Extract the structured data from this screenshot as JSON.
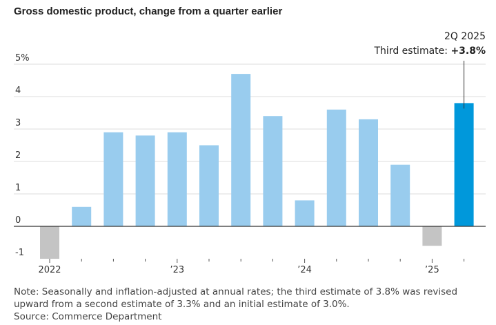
{
  "header": {
    "title": "Gross domestic product, change from a quarter earlier"
  },
  "colors": {
    "past": "#99ccee",
    "negative": "#c4c4c4",
    "latest": "#0098db",
    "grid": "#dddddd",
    "axis": "#333333"
  },
  "chart_data": {
    "type": "bar",
    "title": "Gross domestic product, change from a quarter earlier",
    "xlabel": "",
    "ylabel": "",
    "ylim": [
      -1,
      5
    ],
    "y_ticks": [
      -1,
      0,
      1,
      2,
      3,
      4,
      5
    ],
    "y_tick_labels": [
      "-1",
      "0",
      "1",
      "2",
      "3",
      "4",
      "5%"
    ],
    "grid": true,
    "categories": [
      "1Q 2022",
      "2Q 2022",
      "3Q 2022",
      "4Q 2022",
      "1Q 2023",
      "2Q 2023",
      "3Q 2023",
      "4Q 2023",
      "1Q 2024",
      "2Q 2024",
      "3Q 2024",
      "4Q 2024",
      "1Q 2025",
      "2Q 2025"
    ],
    "values": [
      -1.0,
      0.6,
      2.9,
      2.8,
      2.9,
      2.5,
      4.7,
      3.4,
      0.8,
      3.6,
      3.3,
      1.9,
      -0.6,
      3.8
    ],
    "x_tick_labels": [
      {
        "index": 0,
        "label": "2022"
      },
      {
        "index": 4,
        "label": "’23"
      },
      {
        "index": 8,
        "label": "’24"
      },
      {
        "index": 12,
        "label": "’25"
      }
    ],
    "annotation": {
      "period": "2Q 2025",
      "label": "Third estimate: ",
      "value": "+3.8%",
      "index": 13
    }
  },
  "notes": {
    "note": "Note: Seasonally and inflation-adjusted at annual rates; the third estimate of 3.8% was revised upward from a second estimate of 3.3% and an initial estimate of 3.0%.",
    "source": "Source: Commerce Department"
  }
}
